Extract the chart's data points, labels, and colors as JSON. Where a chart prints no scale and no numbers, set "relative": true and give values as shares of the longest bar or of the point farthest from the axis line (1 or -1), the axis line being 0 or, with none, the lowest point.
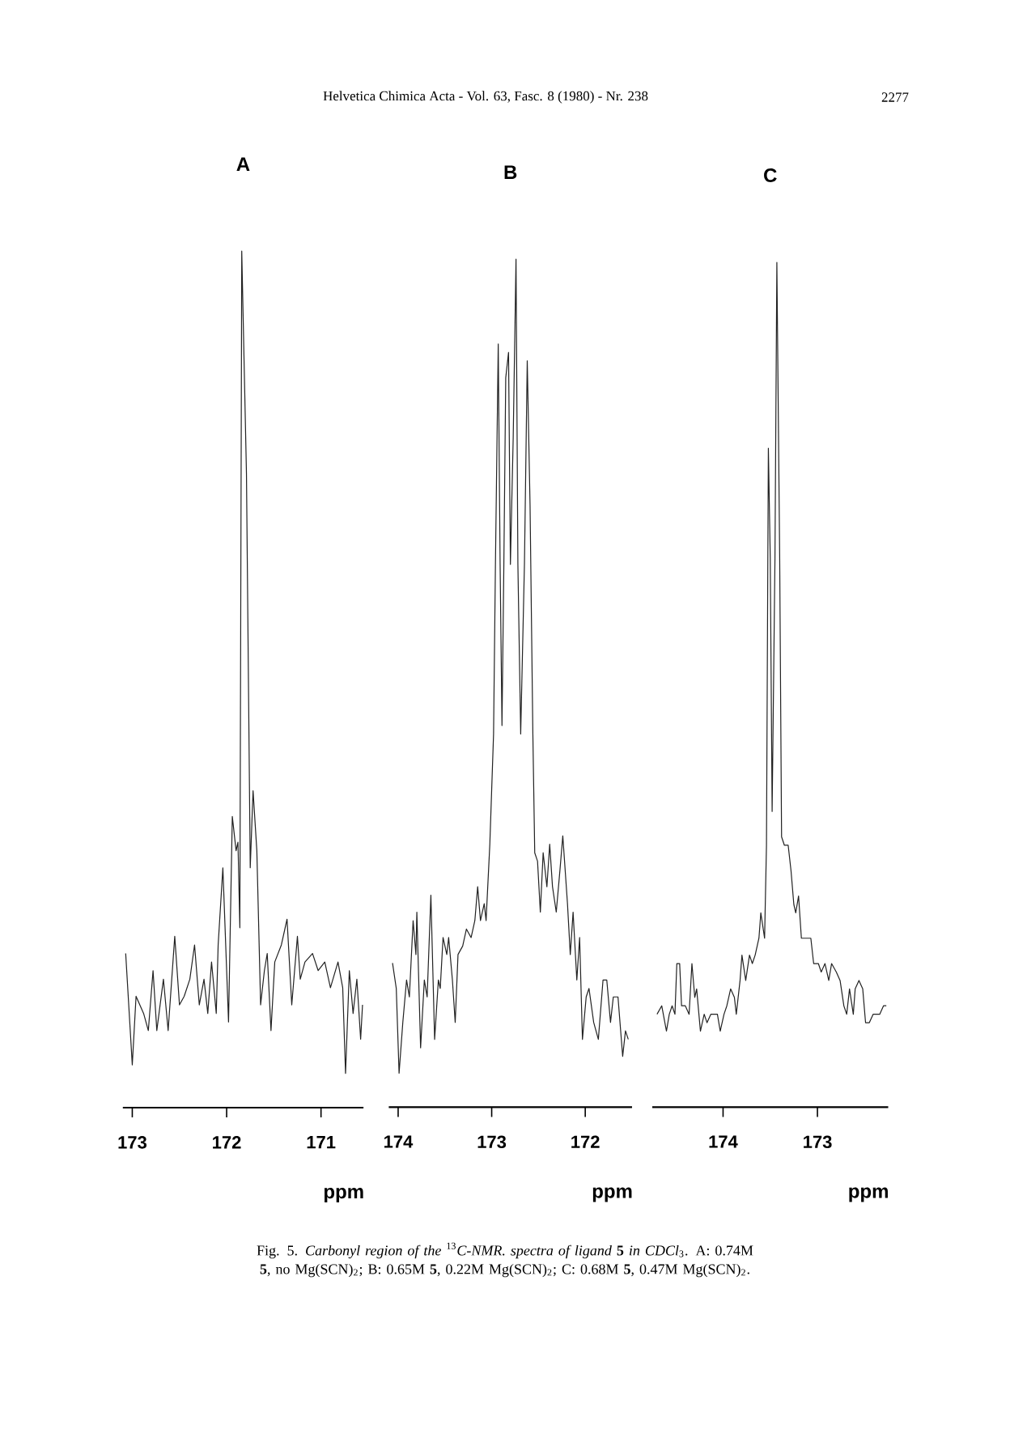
{
  "chart_data": [
    {
      "type": "line",
      "title": "A",
      "xlabel": "ppm",
      "relative": true,
      "color": "#222222",
      "xlim": [
        173.1,
        170.55
      ],
      "xticks": [
        173,
        172,
        171
      ],
      "annotations": [
        "Helvetica Chimica Acta - Vol. 63, Fasc. 8 (1980) - Nr. 238",
        "2277",
        "Fig. 5. *Carbonyl region of the* $^{13}$*C-NMR. spectra of ligand* **5** *in CDCl*$_{3}$. A: 0.74M **5**, no Mg(SCN)$_{2}$; B: 0.65M **5**, 0.22M Mg(SCN)$_{2}$; C: 0.68M **5**, 0.47M Mg(SCN)$_{2}$."
      ],
      "x": [
        173.07,
        173.0,
        172.96,
        172.88,
        172.83,
        172.78,
        172.74,
        172.67,
        172.62,
        172.55,
        172.5,
        172.45,
        172.39,
        172.34,
        172.29,
        172.24,
        172.2,
        172.16,
        172.11,
        172.09,
        172.04,
        171.98,
        171.94,
        171.9,
        171.88,
        171.86,
        171.84,
        171.79,
        171.75,
        171.72,
        171.68,
        171.64,
        171.6,
        171.57,
        171.53,
        171.49,
        171.42,
        171.36,
        171.31,
        171.25,
        171.22,
        171.17,
        171.09,
        171.03,
        170.96,
        170.9,
        170.82,
        170.77,
        170.74,
        170.7,
        170.66,
        170.62,
        170.58,
        170.56
      ],
      "values": [
        0.18,
        0.05,
        0.13,
        0.11,
        0.09,
        0.16,
        0.09,
        0.15,
        0.09,
        0.2,
        0.12,
        0.13,
        0.15,
        0.19,
        0.12,
        0.15,
        0.11,
        0.17,
        0.11,
        0.19,
        0.28,
        0.1,
        0.34,
        0.3,
        0.31,
        0.21,
        1.0,
        0.74,
        0.28,
        0.37,
        0.3,
        0.12,
        0.16,
        0.18,
        0.09,
        0.17,
        0.19,
        0.22,
        0.12,
        0.2,
        0.15,
        0.17,
        0.18,
        0.16,
        0.17,
        0.14,
        0.17,
        0.14,
        0.04,
        0.16,
        0.11,
        0.15,
        0.08,
        0.12
      ]
    },
    {
      "type": "line",
      "title": "B",
      "xlabel": "ppm",
      "relative": true,
      "color": "#222222",
      "xlim": [
        174.1,
        171.5
      ],
      "xticks": [
        174,
        173,
        172
      ],
      "x": [
        174.06,
        174.02,
        173.99,
        173.95,
        173.91,
        173.88,
        173.84,
        173.81,
        173.8,
        173.76,
        173.72,
        173.69,
        173.65,
        173.61,
        173.57,
        173.55,
        173.52,
        173.48,
        173.46,
        173.42,
        173.39,
        173.36,
        173.31,
        173.27,
        173.22,
        173.18,
        173.15,
        173.12,
        173.08,
        173.06,
        173.02,
        172.98,
        172.96,
        172.93,
        172.91,
        172.89,
        172.87,
        172.85,
        172.82,
        172.8,
        172.77,
        172.74,
        172.72,
        172.69,
        172.65,
        172.62,
        172.59,
        172.56,
        172.54,
        172.51,
        172.48,
        172.45,
        172.41,
        172.38,
        172.35,
        172.31,
        172.27,
        172.24,
        172.19,
        172.16,
        172.13,
        172.09,
        172.06,
        172.03,
        171.99,
        171.96,
        171.91,
        171.86,
        171.81,
        171.77,
        171.73,
        171.7,
        171.65,
        171.6,
        171.57,
        171.54
      ],
      "values": [
        0.17,
        0.14,
        0.04,
        0.1,
        0.15,
        0.13,
        0.22,
        0.18,
        0.23,
        0.07,
        0.15,
        0.13,
        0.25,
        0.08,
        0.15,
        0.14,
        0.2,
        0.18,
        0.2,
        0.15,
        0.1,
        0.18,
        0.19,
        0.21,
        0.2,
        0.22,
        0.26,
        0.22,
        0.24,
        0.22,
        0.31,
        0.44,
        0.64,
        0.9,
        0.64,
        0.45,
        0.64,
        0.86,
        0.89,
        0.64,
        0.79,
        1.0,
        0.64,
        0.44,
        0.64,
        0.88,
        0.71,
        0.44,
        0.3,
        0.29,
        0.23,
        0.3,
        0.26,
        0.31,
        0.26,
        0.23,
        0.28,
        0.32,
        0.24,
        0.18,
        0.23,
        0.15,
        0.2,
        0.08,
        0.13,
        0.14,
        0.1,
        0.08,
        0.15,
        0.15,
        0.1,
        0.13,
        0.13,
        0.06,
        0.09,
        0.08
      ]
    },
    {
      "type": "line",
      "title": "C",
      "xlabel": "ppm",
      "relative": true,
      "color": "#222222",
      "xlim": [
        174.75,
        172.25
      ],
      "xticks": [
        174,
        173
      ],
      "x": [
        174.7,
        174.65,
        174.6,
        174.57,
        174.54,
        174.51,
        174.49,
        174.46,
        174.44,
        174.4,
        174.36,
        174.33,
        174.3,
        174.28,
        174.24,
        174.2,
        174.17,
        174.13,
        174.09,
        174.06,
        174.03,
        173.99,
        173.96,
        173.92,
        173.88,
        173.86,
        173.82,
        173.8,
        173.76,
        173.72,
        173.69,
        173.66,
        173.62,
        173.6,
        173.56,
        173.54,
        173.52,
        173.5,
        173.48,
        173.45,
        173.43,
        173.4,
        173.38,
        173.35,
        173.31,
        173.28,
        173.25,
        173.23,
        173.2,
        173.17,
        173.13,
        173.09,
        173.07,
        173.04,
        172.99,
        172.96,
        172.92,
        172.88,
        172.85,
        172.8,
        172.76,
        172.72,
        172.69,
        172.66,
        172.62,
        172.6,
        172.56,
        172.52,
        172.49,
        172.45,
        172.41,
        172.38,
        172.34,
        172.3,
        172.27
      ],
      "values": [
        0.11,
        0.12,
        0.09,
        0.11,
        0.12,
        0.11,
        0.17,
        0.17,
        0.12,
        0.12,
        0.11,
        0.17,
        0.13,
        0.14,
        0.09,
        0.11,
        0.1,
        0.11,
        0.11,
        0.11,
        0.09,
        0.11,
        0.12,
        0.14,
        0.13,
        0.11,
        0.15,
        0.18,
        0.15,
        0.18,
        0.17,
        0.18,
        0.2,
        0.23,
        0.2,
        0.31,
        0.78,
        0.65,
        0.35,
        0.65,
        1.0,
        0.65,
        0.32,
        0.31,
        0.31,
        0.28,
        0.24,
        0.23,
        0.25,
        0.2,
        0.2,
        0.2,
        0.2,
        0.17,
        0.17,
        0.16,
        0.17,
        0.15,
        0.17,
        0.16,
        0.15,
        0.12,
        0.11,
        0.14,
        0.11,
        0.14,
        0.15,
        0.14,
        0.1,
        0.1,
        0.11,
        0.11,
        0.11,
        0.12,
        0.12
      ]
    }
  ]
}
